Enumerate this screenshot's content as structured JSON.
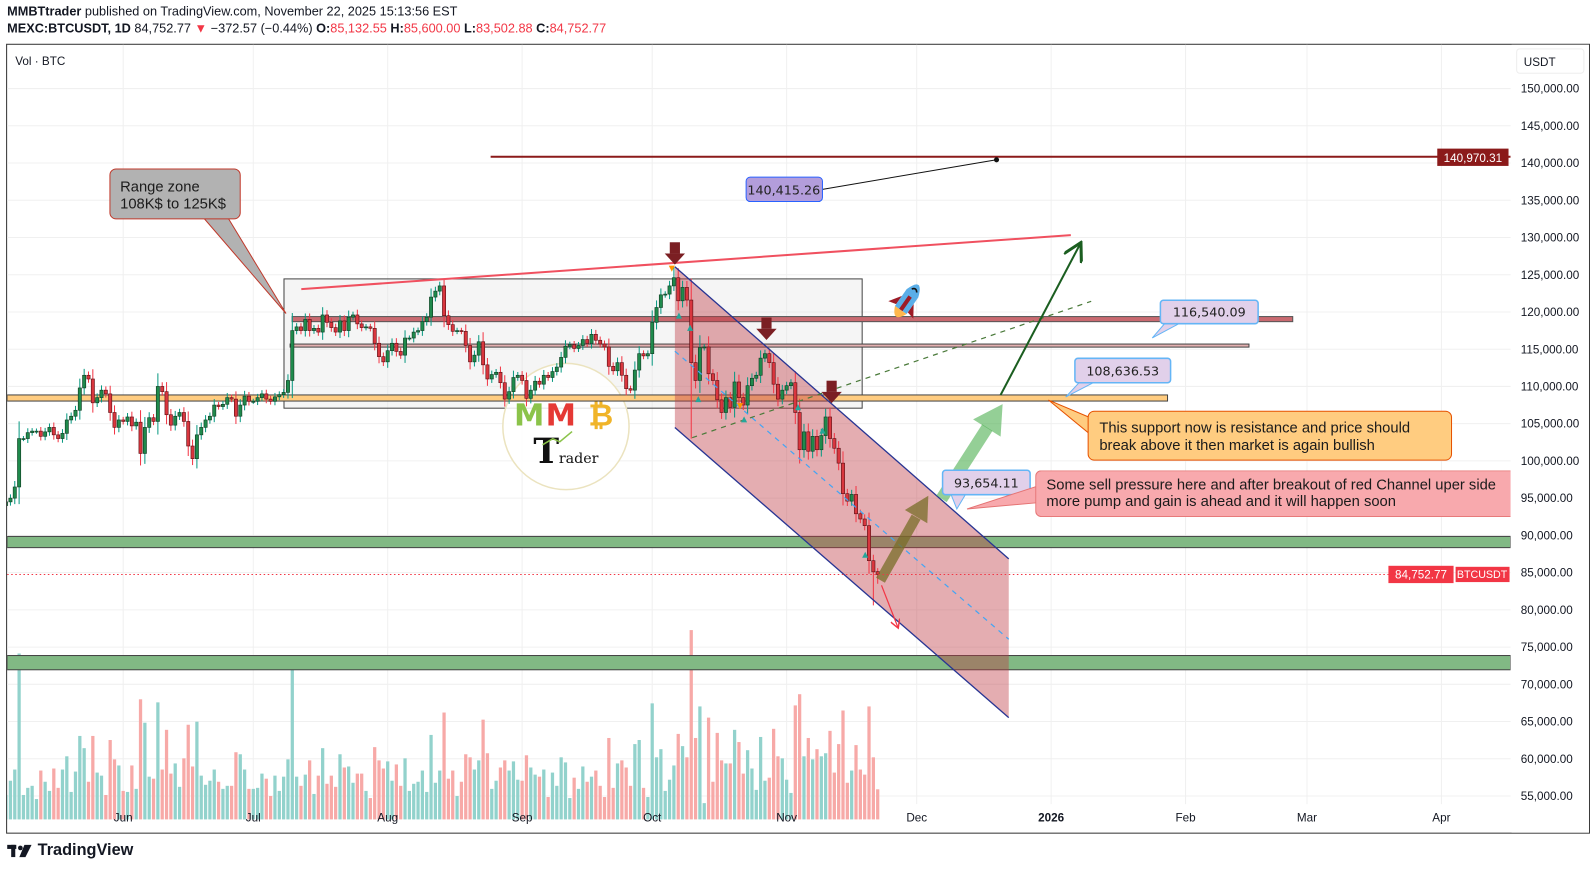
{
  "header": {
    "author": "MMBTtrader",
    "published_text": "published on TradingView.com, November 22, 2025 15:13:56 EST",
    "symbol": "MEXC:BTCUSDT, 1D",
    "last": "84,752.77",
    "change_icon": "triangle-down",
    "change": "−372.57 (−0.44%)",
    "o_label": "O:",
    "o": "85,132.55",
    "h_label": "H:",
    "h": "85,600.00",
    "l_label": "L:",
    "l": "83,502.88",
    "c_label": "C:",
    "c": "84,752.77"
  },
  "legend": {
    "volume": "Vol · BTC"
  },
  "price_axis": {
    "currency": "USDT",
    "ticks": [
      "150,000.00",
      "145,000.00",
      "140,000.00",
      "135,000.00",
      "130,000.00",
      "125,000.00",
      "120,000.00",
      "115,000.00",
      "110,000.00",
      "105,000.00",
      "100,000.00",
      "95,000.00",
      "90,000.00",
      "85,000.00",
      "80,000.00",
      "75,000.00",
      "70,000.00",
      "65,000.00",
      "60,000.00",
      "55,000.00"
    ],
    "level_label": "140,970.31",
    "last_symbol": "BTCUSDT",
    "last_price": "84,752.77"
  },
  "annotations": {
    "range_zone_line1": "Range zone",
    "range_zone_line2": "108K$ to 125K$",
    "target_label": "140,415.26",
    "label_116": "116,540.09",
    "label_108": "108,636.53",
    "label_93": "93,654.11",
    "note_orange_line1": "This support now is resistance and price should",
    "note_orange_line2": "break above it then market is again bullish",
    "note_pink_line1": "Some sell pressure here and after breakout of red Channel uper side",
    "note_pink_line2": "more pump and gain is ahead and it will happen soon",
    "logo_text": "MMB Trader"
  },
  "footer": {
    "brand": "TradingView"
  },
  "colors": {
    "up": "#1f8a4c",
    "down": "#d9363e",
    "vol_up": "#92d2cc",
    "vol_down": "#f7a9a7",
    "level": "#8b1a1a",
    "last_price": "#f23645",
    "channel": "#283593"
  },
  "chart_data": {
    "type": "candlestick",
    "symbol": "MEXC:BTCUSDT",
    "interval": "1D",
    "ylim": [
      55000,
      150000
    ],
    "y_scale": "linear",
    "grid": true,
    "x_ticks": [
      {
        "label": "Jun",
        "date": "2025-06-01"
      },
      {
        "label": "Jul",
        "date": "2025-07-01"
      },
      {
        "label": "Aug",
        "date": "2025-08-01"
      },
      {
        "label": "Sep",
        "date": "2025-09-01"
      },
      {
        "label": "Oct",
        "date": "2025-10-01"
      },
      {
        "label": "Nov",
        "date": "2025-11-01"
      },
      {
        "label": "Dec",
        "date": "2025-12-01"
      },
      {
        "label": "2026",
        "date": "2026-01-01"
      },
      {
        "label": "Feb",
        "date": "2026-02-01"
      },
      {
        "label": "Mar",
        "date": "2026-03-01"
      },
      {
        "label": "Apr",
        "date": "2026-04-01"
      }
    ],
    "closes_by_month": [
      {
        "month": "2025-05",
        "from_day": 5,
        "closes": [
          94500,
          95000,
          96500,
          103000,
          103000,
          103800,
          104000,
          104000,
          103300,
          103900,
          104500,
          103500,
          103000,
          103700,
          105500,
          106000,
          106800,
          109800,
          111500,
          111000,
          107800,
          108500,
          109500,
          109000,
          106500,
          104500,
          105500
        ]
      },
      {
        "month": "2025-06",
        "from_day": 1,
        "closes": [
          105300,
          105900,
          104700,
          105200,
          101000,
          104500,
          105800,
          105300,
          110000,
          109300,
          106200,
          104800,
          106000,
          106500,
          105300,
          102000,
          100300,
          103500,
          104500,
          105500,
          106000,
          107500,
          107300,
          107600,
          108500,
          108300,
          106000,
          107500,
          108700,
          108000
        ]
      },
      {
        "month": "2025-07",
        "from_day": 1,
        "closes": [
          108000,
          108500,
          109000,
          108300,
          108000,
          108600,
          108900,
          109200,
          110800,
          117500,
          118000,
          117500,
          119000,
          117500,
          117800,
          117300,
          119600,
          118600,
          117900,
          117300,
          118800,
          117500,
          119300,
          119600,
          118400,
          117900,
          118000,
          117800,
          115800,
          114000,
          113300
        ]
      },
      {
        "month": "2025-08",
        "from_day": 1,
        "closes": [
          114800,
          115800,
          114700,
          114200,
          116500,
          116500,
          117300,
          117500,
          118700,
          119300,
          122000,
          122800,
          123500,
          119500,
          118300,
          117400,
          117500,
          117400,
          115500,
          113300,
          114200,
          116000,
          112900,
          111000,
          111600,
          111900,
          110500,
          108300,
          109300,
          111200,
          111500
        ]
      },
      {
        "month": "2025-09",
        "from_day": 1,
        "closes": [
          110800,
          108400,
          109500,
          110700,
          110300,
          111500,
          111200,
          112000,
          112600,
          113900,
          115400,
          115600,
          115100,
          115500,
          116300,
          115800,
          117000,
          116200,
          115700,
          115300,
          112700,
          112100,
          113200,
          111500,
          109700,
          109500,
          112200,
          114400,
          114100,
          114400
        ]
      },
      {
        "month": "2025-10",
        "from_day": 1,
        "closes": [
          118600,
          120600,
          122300,
          122400,
          123500,
          124600,
          121500,
          123300,
          121600,
          113200,
          110800,
          115200,
          115300,
          111700,
          110800,
          108200,
          106500,
          108500,
          107200,
          110600,
          108500,
          107500,
          110100,
          111100,
          111500,
          113800,
          114400,
          113200,
          110300,
          108300,
          109500
        ]
      },
      {
        "month": "2025-11",
        "from_day": 1,
        "closes": [
          110100,
          110500,
          106500,
          101500,
          103900,
          101300,
          103300,
          101500,
          103400,
          105900,
          103000,
          101700,
          99700,
          95600,
          94600,
          95500,
          92900,
          92200,
          91300,
          86600,
          85100,
          84752.77
        ]
      }
    ],
    "last_candle": {
      "date": "2025-11-22",
      "open": 85132.55,
      "high": 85600.0,
      "low": 83502.88,
      "close": 84752.77
    },
    "notable_wicks": [
      {
        "date": "2025-10-06",
        "high": 126000
      },
      {
        "date": "2025-10-10",
        "low": 103000
      },
      {
        "date": "2025-08-14",
        "high": 124400
      },
      {
        "date": "2025-11-21",
        "low": 80600
      }
    ],
    "levels": {
      "horizontal_level": 140970.31,
      "last_price": 84752.77
    }
  }
}
